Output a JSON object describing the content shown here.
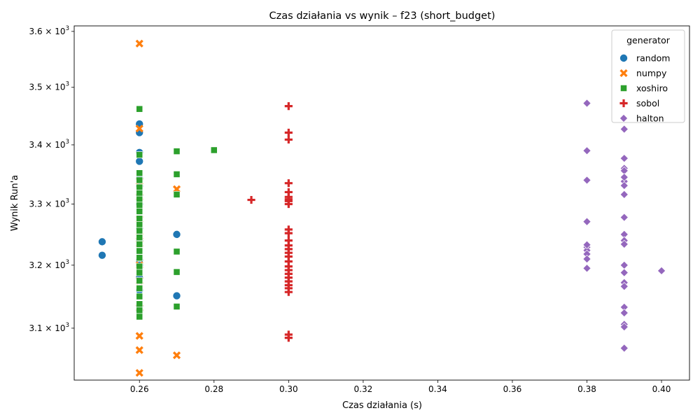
{
  "chart_data": {
    "type": "scatter",
    "title": "Czas działania vs wynik – f23 (short_budget)",
    "xlabel": "Czas działania (s)",
    "ylabel": "Wynik Run'a",
    "xlim": [
      0.2425,
      0.4075
    ],
    "ylim": [
      3020,
      3610
    ],
    "yscale": "log",
    "x_ticks": [
      "0.26",
      "0.28",
      "0.30",
      "0.32",
      "0.34",
      "0.36",
      "0.38",
      "0.40"
    ],
    "y_ticks": [
      {
        "value": 3100,
        "mantissa": "3.1",
        "exponent": "3"
      },
      {
        "value": 3200,
        "mantissa": "3.2",
        "exponent": "3"
      },
      {
        "value": 3300,
        "mantissa": "3.3",
        "exponent": "3"
      },
      {
        "value": 3400,
        "mantissa": "3.4",
        "exponent": "3"
      },
      {
        "value": 3500,
        "mantissa": "3.5",
        "exponent": "3"
      },
      {
        "value": 3600,
        "mantissa": "3.6",
        "exponent": "3"
      }
    ],
    "tick_base": "10",
    "tick_times": "×",
    "legend_title": "generator",
    "legend_position": "top-right",
    "grid": false,
    "series": [
      {
        "name": "random",
        "marker": "circle",
        "color": "#1f77b4",
        "x": [
          0.25,
          0.25,
          0.26,
          0.26,
          0.26,
          0.26,
          0.26,
          0.26,
          0.26,
          0.26,
          0.26,
          0.26,
          0.26,
          0.26,
          0.26,
          0.26,
          0.26,
          0.26,
          0.27,
          0.27
        ],
        "y": [
          3238,
          3216,
          3436,
          3421,
          3387,
          3372,
          3343,
          3330,
          3300,
          3260,
          3240,
          3208,
          3180,
          3160,
          3135,
          3128,
          3200,
          3315,
          3250,
          3151
        ]
      },
      {
        "name": "numpy",
        "marker": "x",
        "color": "#ff7f0e",
        "x": [
          0.26,
          0.26,
          0.26,
          0.26,
          0.26,
          0.26,
          0.26,
          0.26,
          0.26,
          0.26,
          0.26,
          0.26,
          0.26,
          0.27,
          0.27
        ],
        "y": [
          3578,
          3428,
          3338,
          3275,
          3247,
          3235,
          3200,
          3175,
          3132,
          3088,
          3066,
          3031,
          3312,
          3325,
          3058
        ]
      },
      {
        "name": "xoshiro",
        "marker": "square",
        "color": "#2ca02c",
        "x": [
          0.26,
          0.26,
          0.26,
          0.26,
          0.26,
          0.26,
          0.26,
          0.26,
          0.26,
          0.26,
          0.26,
          0.26,
          0.26,
          0.26,
          0.26,
          0.26,
          0.26,
          0.26,
          0.26,
          0.26,
          0.26,
          0.26,
          0.26,
          0.26,
          0.27,
          0.27,
          0.27,
          0.27,
          0.27,
          0.27,
          0.28
        ],
        "y": [
          3462,
          3383,
          3352,
          3328,
          3318,
          3308,
          3298,
          3288,
          3276,
          3266,
          3256,
          3245,
          3234,
          3223,
          3212,
          3198,
          3188,
          3175,
          3163,
          3150,
          3138,
          3128,
          3118,
          3340,
          3389,
          3350,
          3316,
          3222,
          3189,
          3134,
          3391
        ]
      },
      {
        "name": "sobol",
        "marker": "plus",
        "color": "#d62728",
        "x": [
          0.29,
          0.3,
          0.3,
          0.3,
          0.3,
          0.3,
          0.3,
          0.3,
          0.3,
          0.3,
          0.3,
          0.3,
          0.3,
          0.3,
          0.3,
          0.3,
          0.3,
          0.3,
          0.3,
          0.3,
          0.3,
          0.3,
          0.3,
          0.3,
          0.3,
          0.3,
          0.3,
          0.3
        ],
        "y": [
          3307,
          3467,
          3421,
          3409,
          3335,
          3320,
          3312,
          3305,
          3300,
          3258,
          3252,
          3232,
          3226,
          3220,
          3214,
          3206,
          3198,
          3192,
          3186,
          3180,
          3174,
          3168,
          3163,
          3157,
          3090,
          3085,
          3308,
          3240
        ]
      },
      {
        "name": "halton",
        "marker": "diamond",
        "color": "#9467bd",
        "x": [
          0.38,
          0.38,
          0.38,
          0.38,
          0.38,
          0.38,
          0.38,
          0.38,
          0.38,
          0.38,
          0.39,
          0.39,
          0.39,
          0.39,
          0.39,
          0.39,
          0.39,
          0.39,
          0.39,
          0.39,
          0.39,
          0.39,
          0.39,
          0.39,
          0.39,
          0.39,
          0.39,
          0.39,
          0.39,
          0.39,
          0.39,
          0.4
        ],
        "y": [
          3472,
          3390,
          3340,
          3271,
          3229,
          3224,
          3218,
          3210,
          3195,
          3233,
          3427,
          3377,
          3360,
          3356,
          3338,
          3331,
          3250,
          3240,
          3234,
          3200,
          3188,
          3172,
          3166,
          3133,
          3124,
          3106,
          3102,
          3069,
          3278,
          3345,
          3316,
          3191
        ]
      }
    ]
  }
}
